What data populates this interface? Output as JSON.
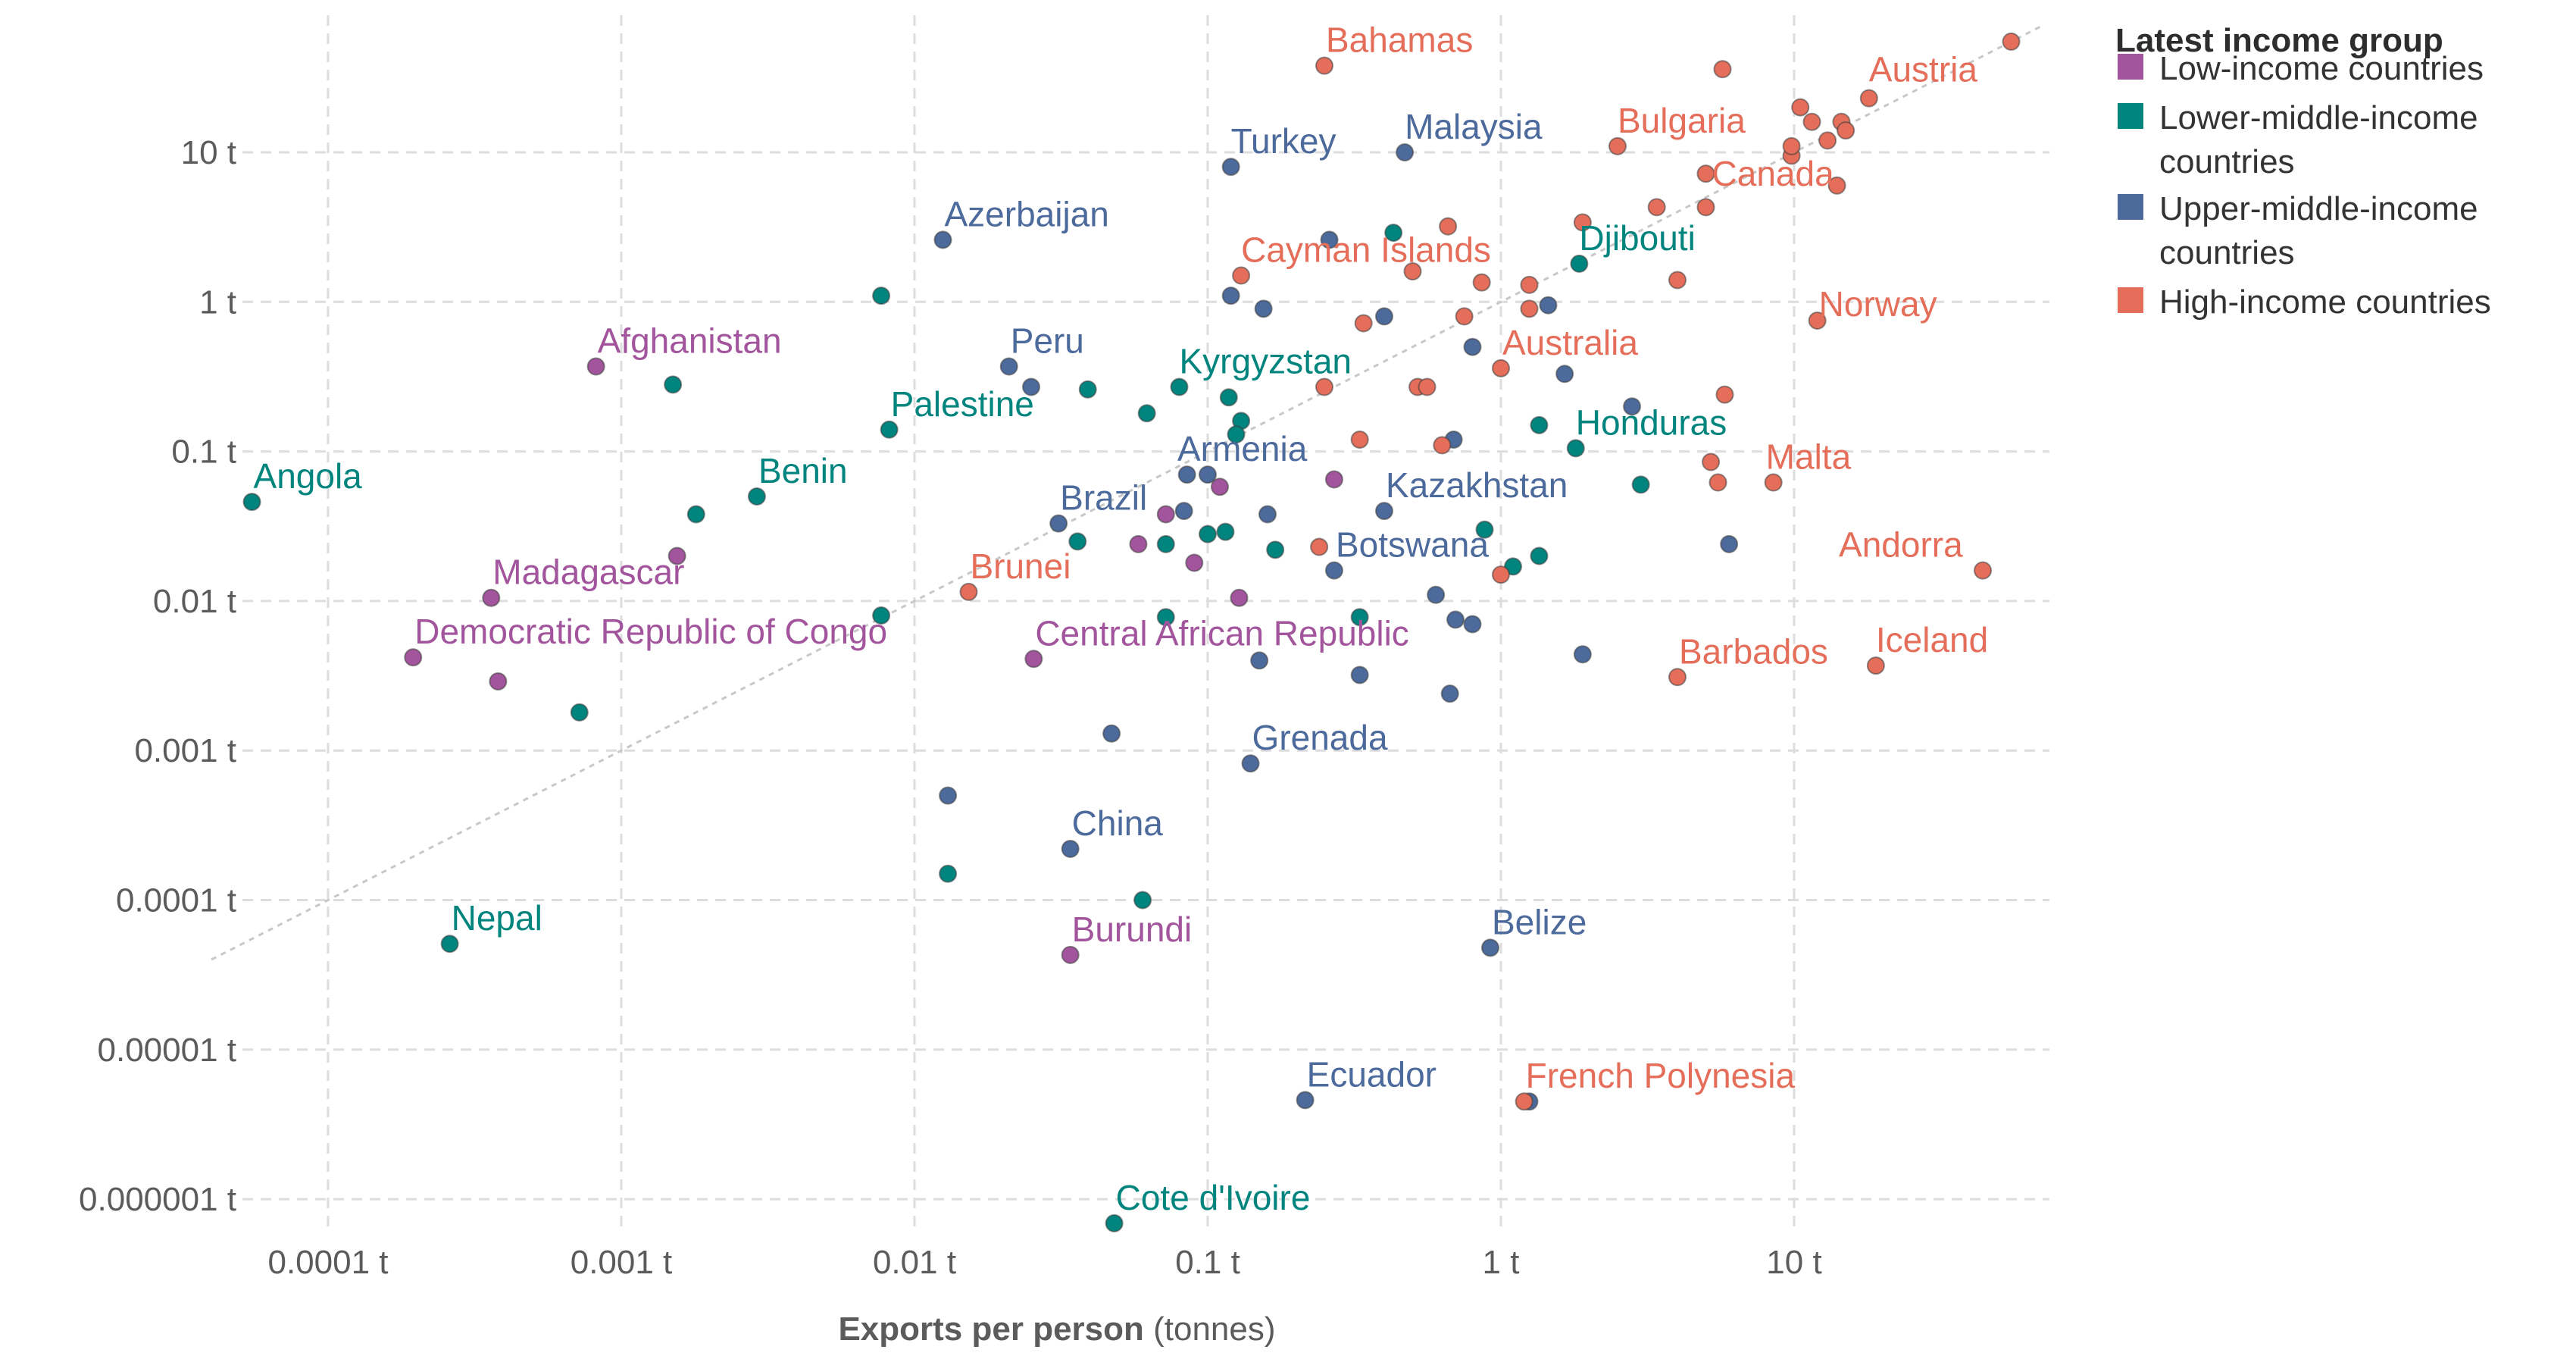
{
  "chart_data": {
    "type": "scatter",
    "x_scale": "log",
    "y_scale": "log",
    "xlim": [
      4e-05,
      70
    ],
    "ylim": [
      6e-07,
      90
    ],
    "grid": true,
    "legend_placement": "top-right",
    "xlabel_bold": "Exports per person",
    "xlabel_rest": " (tonnes)",
    "x_ticks": [
      {
        "value": 0.0001,
        "label": "0.0001 t"
      },
      {
        "value": 0.001,
        "label": "0.001 t"
      },
      {
        "value": 0.01,
        "label": "0.01 t"
      },
      {
        "value": 0.1,
        "label": "0.1 t"
      },
      {
        "value": 1,
        "label": "1 t"
      },
      {
        "value": 10,
        "label": "10 t"
      }
    ],
    "y_ticks": [
      {
        "value": 10,
        "label": "10 t"
      },
      {
        "value": 1,
        "label": "1 t"
      },
      {
        "value": 0.1,
        "label": "0.1 t"
      },
      {
        "value": 0.01,
        "label": "0.01 t"
      },
      {
        "value": 0.001,
        "label": "0.001 t"
      },
      {
        "value": 0.0001,
        "label": "0.0001 t"
      },
      {
        "value": 1e-05,
        "label": "0.00001 t"
      },
      {
        "value": 1e-06,
        "label": "0.000001 t"
      }
    ],
    "reference_line": {
      "from": [
        4e-05,
        4e-05
      ],
      "to": [
        70,
        70
      ]
    },
    "legend": {
      "title": "Latest income group",
      "items": [
        {
          "key": "low",
          "lines": [
            "Low-income countries"
          ]
        },
        {
          "key": "lower_middle",
          "lines": [
            "Lower-middle-income",
            "countries"
          ]
        },
        {
          "key": "upper_middle",
          "lines": [
            "Upper-middle-income",
            "countries"
          ]
        },
        {
          "key": "high",
          "lines": [
            "High-income countries"
          ]
        }
      ]
    },
    "colors": {
      "low": "#a2559c",
      "lower_middle": "#00847e",
      "upper_middle": "#4c6a9c",
      "high": "#e56e5a",
      "low_label": "#a2559c",
      "lower_middle_label": "#00847e",
      "upper_middle_label": "#4c6a9c",
      "high_label": "#e56e5a"
    },
    "labeled_points": [
      {
        "name": "Bahamas",
        "group": "high",
        "x": 0.25,
        "y": 38
      },
      {
        "name": "Austria",
        "group": "high",
        "x": 18,
        "y": 23
      },
      {
        "name": "Bulgaria",
        "group": "high",
        "x": 2.5,
        "y": 11
      },
      {
        "name": "Malaysia",
        "group": "upper_middle",
        "x": 0.47,
        "y": 10
      },
      {
        "name": "Turkey",
        "group": "upper_middle",
        "x": 0.12,
        "y": 8
      },
      {
        "name": "Canada",
        "group": "high",
        "x": 14,
        "y": 6
      },
      {
        "name": "Azerbaijan",
        "group": "upper_middle",
        "x": 0.0125,
        "y": 2.6
      },
      {
        "name": "Djibouti",
        "group": "lower_middle",
        "x": 1.85,
        "y": 1.8
      },
      {
        "name": "Cayman Islands",
        "group": "high",
        "x": 0.13,
        "y": 1.5
      },
      {
        "name": "Norway",
        "group": "high",
        "x": 12,
        "y": 0.75
      },
      {
        "name": "Afghanistan",
        "group": "low",
        "x": 0.00082,
        "y": 0.37
      },
      {
        "name": "Peru",
        "group": "upper_middle",
        "x": 0.021,
        "y": 0.37
      },
      {
        "name": "Australia",
        "group": "high",
        "x": 1.0,
        "y": 0.36
      },
      {
        "name": "Kyrgyzstan",
        "group": "lower_middle",
        "x": 0.08,
        "y": 0.27
      },
      {
        "name": "Palestine",
        "group": "lower_middle",
        "x": 0.0082,
        "y": 0.14
      },
      {
        "name": "Honduras",
        "group": "lower_middle",
        "x": 1.8,
        "y": 0.105
      },
      {
        "name": "Armenia",
        "group": "upper_middle",
        "x": 0.1,
        "y": 0.07
      },
      {
        "name": "Malta",
        "group": "high",
        "x": 8.5,
        "y": 0.062
      },
      {
        "name": "Angola",
        "group": "lower_middle",
        "x": 5.5e-05,
        "y": 0.046
      },
      {
        "name": "Benin",
        "group": "lower_middle",
        "x": 0.0029,
        "y": 0.05
      },
      {
        "name": "Brazil",
        "group": "upper_middle",
        "x": 0.031,
        "y": 0.033
      },
      {
        "name": "Kazakhstan",
        "group": "upper_middle",
        "x": 0.4,
        "y": 0.04
      },
      {
        "name": "Botswana",
        "group": "upper_middle",
        "x": 0.27,
        "y": 0.016
      },
      {
        "name": "Andorra",
        "group": "high",
        "x": 44,
        "y": 0.016
      },
      {
        "name": "Madagascar",
        "group": "low",
        "x": 0.00036,
        "y": 0.0105
      },
      {
        "name": "Brunei",
        "group": "high",
        "x": 0.0153,
        "y": 0.0115
      },
      {
        "name": "Democratic Republic of Congo",
        "group": "low",
        "x": 0.000195,
        "y": 0.0042
      },
      {
        "name": "Central African Republic",
        "group": "low",
        "x": 0.0255,
        "y": 0.0041
      },
      {
        "name": "Iceland",
        "group": "high",
        "x": 19,
        "y": 0.0037
      },
      {
        "name": "Barbados",
        "group": "high",
        "x": 4.0,
        "y": 0.0031
      },
      {
        "name": "Grenada",
        "group": "upper_middle",
        "x": 0.14,
        "y": 0.00082
      },
      {
        "name": "China",
        "group": "upper_middle",
        "x": 0.034,
        "y": 0.00022
      },
      {
        "name": "Nepal",
        "group": "lower_middle",
        "x": 0.00026,
        "y": 5.1e-05
      },
      {
        "name": "Burundi",
        "group": "low",
        "x": 0.034,
        "y": 4.3e-05
      },
      {
        "name": "Belize",
        "group": "upper_middle",
        "x": 0.92,
        "y": 4.8e-05
      },
      {
        "name": "Ecuador",
        "group": "upper_middle",
        "x": 0.215,
        "y": 4.6e-06
      },
      {
        "name": "French Polynesia",
        "group": "high",
        "x": 1.2,
        "y": 4.5e-06
      },
      {
        "name": "Cote d'Ivoire",
        "group": "lower_middle",
        "x": 0.048,
        "y": 6.9e-07
      }
    ],
    "other_points": [
      {
        "group": "low",
        "x": 0.00155,
        "y": 0.02
      },
      {
        "group": "low",
        "x": 0.00038,
        "y": 0.0029
      },
      {
        "group": "low",
        "x": 0.058,
        "y": 0.024
      },
      {
        "group": "low",
        "x": 0.072,
        "y": 0.038
      },
      {
        "group": "low",
        "x": 0.09,
        "y": 0.018
      },
      {
        "group": "low",
        "x": 0.11,
        "y": 0.058
      },
      {
        "group": "low",
        "x": 0.128,
        "y": 0.0105
      },
      {
        "group": "low",
        "x": 0.27,
        "y": 0.065
      },
      {
        "group": "lower_middle",
        "x": 0.0015,
        "y": 0.28
      },
      {
        "group": "lower_middle",
        "x": 0.0018,
        "y": 0.038
      },
      {
        "group": "lower_middle",
        "x": 0.00072,
        "y": 0.0018
      },
      {
        "group": "lower_middle",
        "x": 0.0077,
        "y": 1.1
      },
      {
        "group": "lower_middle",
        "x": 0.0077,
        "y": 0.008
      },
      {
        "group": "lower_middle",
        "x": 0.039,
        "y": 0.26
      },
      {
        "group": "lower_middle",
        "x": 0.036,
        "y": 0.025
      },
      {
        "group": "lower_middle",
        "x": 0.062,
        "y": 0.18
      },
      {
        "group": "lower_middle",
        "x": 0.072,
        "y": 0.024
      },
      {
        "group": "lower_middle",
        "x": 0.1,
        "y": 0.028
      },
      {
        "group": "lower_middle",
        "x": 0.115,
        "y": 0.029
      },
      {
        "group": "lower_middle",
        "x": 0.118,
        "y": 0.23
      },
      {
        "group": "lower_middle",
        "x": 0.13,
        "y": 0.16
      },
      {
        "group": "lower_middle",
        "x": 0.125,
        "y": 0.13
      },
      {
        "group": "lower_middle",
        "x": 0.17,
        "y": 0.022
      },
      {
        "group": "lower_middle",
        "x": 0.072,
        "y": 0.0078
      },
      {
        "group": "lower_middle",
        "x": 0.33,
        "y": 0.0078
      },
      {
        "group": "lower_middle",
        "x": 0.013,
        "y": 0.00015
      },
      {
        "group": "lower_middle",
        "x": 0.06,
        "y": 0.0001
      },
      {
        "group": "lower_middle",
        "x": 0.43,
        "y": 2.9
      },
      {
        "group": "lower_middle",
        "x": 0.88,
        "y": 0.03
      },
      {
        "group": "lower_middle",
        "x": 1.1,
        "y": 0.017
      },
      {
        "group": "lower_middle",
        "x": 1.35,
        "y": 0.02
      },
      {
        "group": "lower_middle",
        "x": 1.35,
        "y": 0.15
      },
      {
        "group": "lower_middle",
        "x": 3.0,
        "y": 0.06
      },
      {
        "group": "upper_middle",
        "x": 0.025,
        "y": 0.27
      },
      {
        "group": "upper_middle",
        "x": 0.047,
        "y": 0.0013
      },
      {
        "group": "upper_middle",
        "x": 0.013,
        "y": 0.0005
      },
      {
        "group": "upper_middle",
        "x": 0.083,
        "y": 0.04
      },
      {
        "group": "upper_middle",
        "x": 0.085,
        "y": 0.07
      },
      {
        "group": "upper_middle",
        "x": 0.12,
        "y": 1.1
      },
      {
        "group": "upper_middle",
        "x": 0.155,
        "y": 0.9
      },
      {
        "group": "upper_middle",
        "x": 0.16,
        "y": 0.038
      },
      {
        "group": "upper_middle",
        "x": 0.15,
        "y": 0.004
      },
      {
        "group": "upper_middle",
        "x": 0.26,
        "y": 2.6
      },
      {
        "group": "upper_middle",
        "x": 0.33,
        "y": 0.0032
      },
      {
        "group": "upper_middle",
        "x": 0.4,
        "y": 0.8
      },
      {
        "group": "upper_middle",
        "x": 0.6,
        "y": 0.011
      },
      {
        "group": "upper_middle",
        "x": 0.67,
        "y": 0.0024
      },
      {
        "group": "upper_middle",
        "x": 0.7,
        "y": 0.0075
      },
      {
        "group": "upper_middle",
        "x": 0.69,
        "y": 0.12
      },
      {
        "group": "upper_middle",
        "x": 0.8,
        "y": 0.5
      },
      {
        "group": "upper_middle",
        "x": 0.8,
        "y": 0.007
      },
      {
        "group": "upper_middle",
        "x": 1.45,
        "y": 0.95
      },
      {
        "group": "upper_middle",
        "x": 1.65,
        "y": 0.33
      },
      {
        "group": "upper_middle",
        "x": 1.9,
        "y": 0.0044
      },
      {
        "group": "upper_middle",
        "x": 2.8,
        "y": 0.2
      },
      {
        "group": "upper_middle",
        "x": 6.0,
        "y": 0.024
      },
      {
        "group": "upper_middle",
        "x": 1.25,
        "y": 4.5e-06
      },
      {
        "group": "high",
        "x": 0.25,
        "y": 0.27
      },
      {
        "group": "high",
        "x": 0.24,
        "y": 0.023
      },
      {
        "group": "high",
        "x": 0.33,
        "y": 0.12
      },
      {
        "group": "high",
        "x": 0.34,
        "y": 0.72
      },
      {
        "group": "high",
        "x": 0.5,
        "y": 1.6
      },
      {
        "group": "high",
        "x": 0.52,
        "y": 0.27
      },
      {
        "group": "high",
        "x": 0.56,
        "y": 0.27
      },
      {
        "group": "high",
        "x": 0.63,
        "y": 0.11
      },
      {
        "group": "high",
        "x": 0.66,
        "y": 3.2
      },
      {
        "group": "high",
        "x": 0.75,
        "y": 0.8
      },
      {
        "group": "high",
        "x": 0.86,
        "y": 1.35
      },
      {
        "group": "high",
        "x": 1.0,
        "y": 0.015
      },
      {
        "group": "high",
        "x": 1.25,
        "y": 1.3
      },
      {
        "group": "high",
        "x": 1.25,
        "y": 0.9
      },
      {
        "group": "high",
        "x": 1.9,
        "y": 3.4
      },
      {
        "group": "high",
        "x": 3.4,
        "y": 4.3
      },
      {
        "group": "high",
        "x": 4.0,
        "y": 1.4
      },
      {
        "group": "high",
        "x": 5.0,
        "y": 4.3
      },
      {
        "group": "high",
        "x": 5.0,
        "y": 7.2
      },
      {
        "group": "high",
        "x": 5.2,
        "y": 0.085
      },
      {
        "group": "high",
        "x": 5.5,
        "y": 0.062
      },
      {
        "group": "high",
        "x": 5.7,
        "y": 36
      },
      {
        "group": "high",
        "x": 5.8,
        "y": 0.24
      },
      {
        "group": "high",
        "x": 9.8,
        "y": 9.5
      },
      {
        "group": "high",
        "x": 9.8,
        "y": 11
      },
      {
        "group": "high",
        "x": 10.5,
        "y": 20
      },
      {
        "group": "high",
        "x": 11.5,
        "y": 16
      },
      {
        "group": "high",
        "x": 13,
        "y": 12
      },
      {
        "group": "high",
        "x": 14.5,
        "y": 16
      },
      {
        "group": "high",
        "x": 15,
        "y": 14
      },
      {
        "group": "high",
        "x": 55,
        "y": 55
      }
    ]
  }
}
